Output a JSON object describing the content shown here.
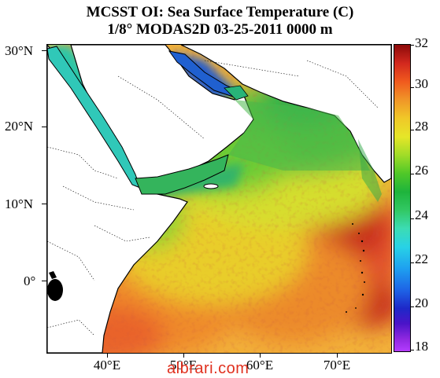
{
  "title": {
    "line1": "MCSST OI:  Sea Surface Temperature (C)",
    "line2": "1/8° MODAS2D 03-25-2011 0000 m"
  },
  "map": {
    "lat_labels": [
      "30°N",
      "20°N",
      "10°N",
      "0°"
    ],
    "lon_labels": [
      "40°E",
      "50°E",
      "60°E",
      "70°E"
    ],
    "colors": {
      "land": "#ffffff",
      "coast": "#000000",
      "warmest_sea": "#d2281e",
      "coolest_sea": "#1e28c8"
    }
  },
  "colorbar": {
    "labels": [
      "32",
      "30",
      "28",
      "26",
      "24",
      "22",
      "20",
      "18"
    ],
    "min": 18,
    "max": 32,
    "unit": "C"
  },
  "watermark": "albrari.com"
}
